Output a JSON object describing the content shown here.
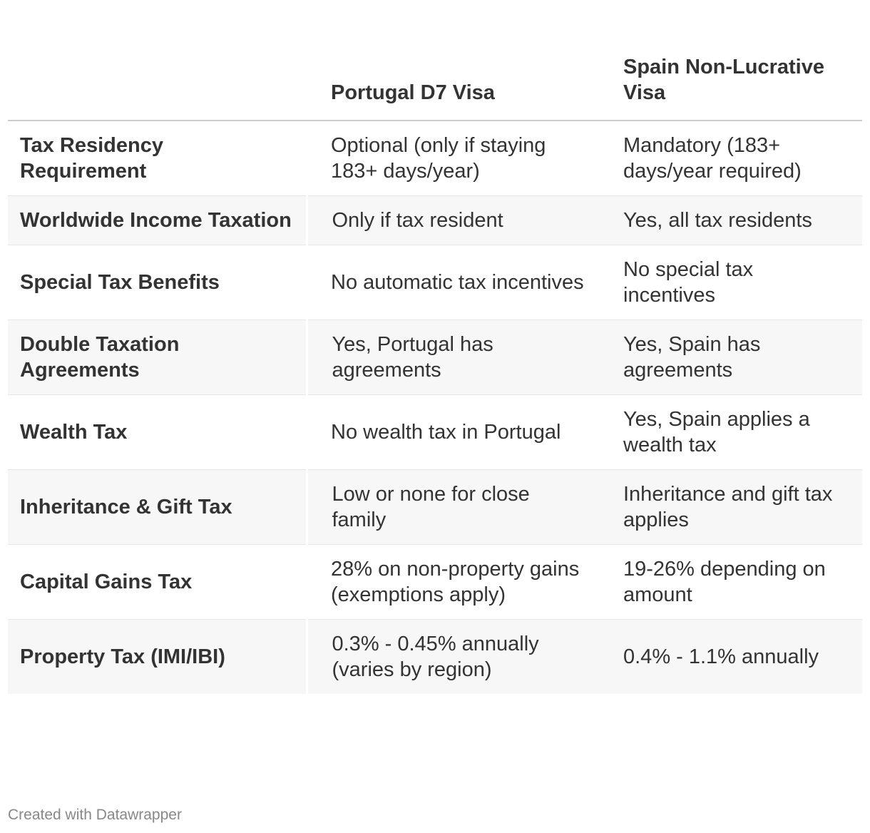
{
  "chart_data": {
    "type": "table",
    "columns": [
      "",
      "Portugal D7 Visa",
      "Spain Non-Lucrative Visa"
    ],
    "rows": [
      [
        "Tax Residency Requirement",
        "Optional (only if staying 183+ days/year)",
        "Mandatory (183+ days/year required)"
      ],
      [
        "Worldwide Income Taxation",
        "Only if tax resident",
        "Yes, all tax residents"
      ],
      [
        "Special Tax Benefits",
        "No automatic tax incentives",
        "No special tax incentives"
      ],
      [
        "Double Taxation Agreements",
        "Yes, Portugal has agreements",
        "Yes, Spain has agreements"
      ],
      [
        "Wealth Tax",
        "No wealth tax in Portugal",
        "Yes, Spain applies a wealth tax"
      ],
      [
        "Inheritance & Gift Tax",
        "Low or none for close family",
        "Inheritance and gift tax applies"
      ],
      [
        "Capital Gains Tax",
        "28% on non-property gains (exemptions apply)",
        "19-26% depending on amount"
      ],
      [
        "Property Tax (IMI/IBI)",
        "0.3% - 0.45% annually (varies by region)",
        "0.4% - 1.1% annually"
      ]
    ]
  },
  "footer": {
    "credit": "Created with Datawrapper"
  },
  "colors": {
    "text": "#333333",
    "stripe": "#f7f7f7",
    "header_rule": "#cccccc",
    "row_rule": "#e6e6e6",
    "footer_text": "#888888"
  }
}
